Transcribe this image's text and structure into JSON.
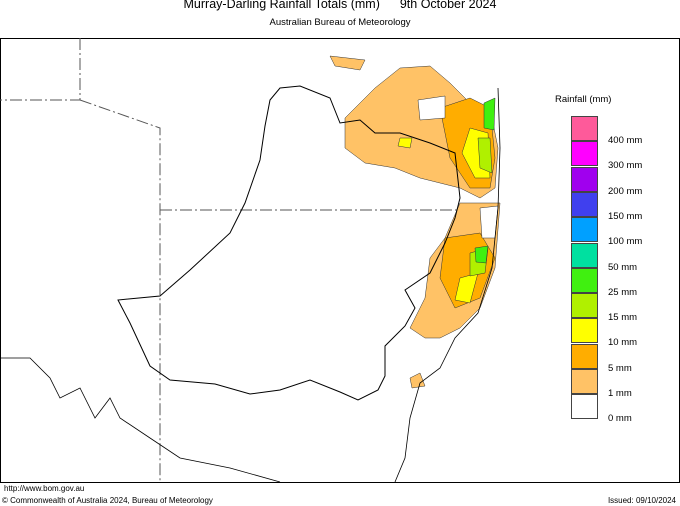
{
  "header": {
    "title": "Murray-Darling Rainfall Totals (mm)",
    "date": "9th October 2024",
    "subtitle": "Australian Bureau of Meteorology"
  },
  "legend": {
    "title": "Rainfall (mm)",
    "colors": [
      "#fe5a9a",
      "#ff00ff",
      "#a000ee",
      "#4040ee",
      "#00a0ff",
      "#00e0a0",
      "#40f010",
      "#b0f000",
      "#ffff00",
      "#ffad00",
      "#ffc266",
      "#ffffff"
    ],
    "labels": [
      "400 mm",
      "300 mm",
      "200 mm",
      "150 mm",
      "100 mm",
      "50 mm",
      "25 mm",
      "15 mm",
      "10 mm",
      "5 mm",
      "1 mm",
      "0 mm"
    ]
  },
  "footer": {
    "url": "http://www.bom.gov.au",
    "copyright": "© Commonwealth of Australia 2024, Bureau of Meteorology",
    "issued": "Issued: 09/10/2024"
  }
}
